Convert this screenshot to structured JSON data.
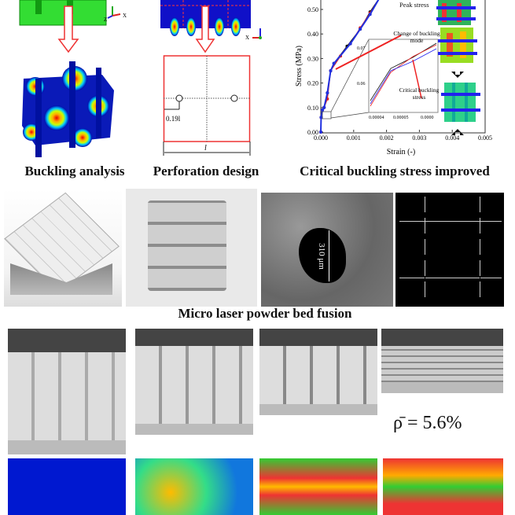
{
  "captions": {
    "buckling": "Buckling analysis",
    "perforation": "Perforation design",
    "critical": "Critical buckling stress improved",
    "fabrication": "Micro laser powder bed fusion"
  },
  "axes_labels": {
    "y": "Y",
    "x": "X",
    "z": "Z"
  },
  "perforation": {
    "offset_label": "0.19l",
    "length_label": "l"
  },
  "sem": {
    "scale_label": "310 μm"
  },
  "density_label": "ρ̄ = 5.6%",
  "chart_data": {
    "type": "line",
    "xlabel": "Strain (-)",
    "ylabel": "Stress (MPa)",
    "xlim": [
      0,
      0.005
    ],
    "ylim": [
      0,
      0.55
    ],
    "xticks": [
      "0.000",
      "0.001",
      "0.002",
      "0.003",
      "0.004",
      "0.005"
    ],
    "yticks": [
      "0.00",
      "0.10",
      "0.20",
      "0.30",
      "0.40",
      "0.50"
    ],
    "series": [
      {
        "color": "#111111",
        "x": [
          0,
          1e-05,
          5e-05,
          0.0001,
          0.0002,
          0.0003,
          0.0004,
          0.0008,
          0.0012,
          0.0015,
          0.0018
        ],
        "y": [
          0,
          0.06,
          0.09,
          0.1,
          0.16,
          0.25,
          0.28,
          0.35,
          0.42,
          0.49,
          0.55
        ]
      },
      {
        "color": "#e02020",
        "x": [
          0,
          1e-05,
          5e-05,
          0.0001,
          0.0002,
          0.0003,
          0.0006,
          0.0009,
          0.0012,
          0.0015,
          0.0018
        ],
        "y": [
          0,
          0.06,
          0.09,
          0.1,
          0.135,
          0.25,
          0.31,
          0.36,
          0.425,
          0.485,
          0.55
        ]
      },
      {
        "color": "#2030e0",
        "x": [
          0,
          1e-05,
          5e-05,
          0.0001,
          0.0002,
          0.0003,
          0.0004,
          0.0009,
          0.0012,
          0.0015,
          0.0018
        ],
        "y": [
          0,
          0.06,
          0.09,
          0.1,
          0.16,
          0.25,
          0.28,
          0.36,
          0.42,
          0.48,
          0.55
        ]
      }
    ],
    "inset": {
      "xticks": [
        "0.00004",
        "0.00005",
        "0.0000"
      ],
      "yticks": [
        "0.06",
        "0.07"
      ]
    },
    "annotations": [
      "Peak stress",
      "Change of buckling mode",
      "Critical buckling stress"
    ]
  }
}
